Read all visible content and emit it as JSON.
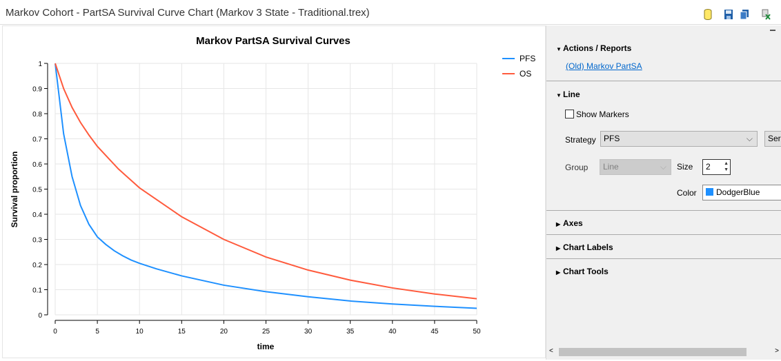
{
  "window": {
    "title": "Markov Cohort - PartSA Survival Curve Chart (Markov 3 State - Traditional.trex)",
    "toolbar_icons": [
      "database-icon",
      "save-icon",
      "copy-icon",
      "excel-export-icon"
    ]
  },
  "panel": {
    "actions": {
      "header": "Actions / Reports",
      "link": "(Old) Markov PartSA"
    },
    "line": {
      "header": "Line",
      "show_markers_label": "Show Markers",
      "show_markers": false,
      "strategy_label": "Strategy",
      "strategy_value": "PFS",
      "series_button": "Seri",
      "group_label": "Group",
      "group_value": "Line",
      "size_label": "Size",
      "size_value": "2",
      "color_label": "Color",
      "color_value": "DodgerBlue",
      "color_swatch": "#1e90ff"
    },
    "sections": [
      "Axes",
      "Chart Labels",
      "Chart Tools"
    ]
  },
  "chart_data": {
    "type": "line",
    "title": "Markov PartSA Survival Curves",
    "xlabel": "time",
    "ylabel": "Survival proportion",
    "xlim": [
      0,
      50
    ],
    "ylim": [
      0,
      1
    ],
    "xticks": [
      0,
      5,
      10,
      15,
      20,
      25,
      30,
      35,
      40,
      45,
      50
    ],
    "yticks": [
      0,
      0.1,
      0.2,
      0.3,
      0.4,
      0.5,
      0.6,
      0.7,
      0.8,
      0.9,
      1
    ],
    "grid": true,
    "legend": "top-right",
    "series": [
      {
        "name": "PFS",
        "color": "#1e90ff",
        "x": [
          0,
          1,
          2,
          3,
          4,
          5,
          6,
          7,
          8,
          9,
          10,
          12,
          15,
          20,
          25,
          30,
          35,
          40,
          45,
          50
        ],
        "y": [
          1,
          0.72,
          0.55,
          0.435,
          0.36,
          0.31,
          0.28,
          0.255,
          0.235,
          0.218,
          0.205,
          0.183,
          0.155,
          0.118,
          0.092,
          0.072,
          0.055,
          0.043,
          0.034,
          0.026
        ]
      },
      {
        "name": "OS",
        "color": "#ff5a3c",
        "x": [
          0,
          1,
          2,
          3,
          4,
          5,
          7.5,
          10,
          15,
          20,
          25,
          30,
          35,
          40,
          45,
          50
        ],
        "y": [
          1,
          0.9,
          0.825,
          0.765,
          0.715,
          0.67,
          0.58,
          0.505,
          0.39,
          0.3,
          0.23,
          0.178,
          0.138,
          0.107,
          0.083,
          0.064
        ]
      }
    ]
  }
}
